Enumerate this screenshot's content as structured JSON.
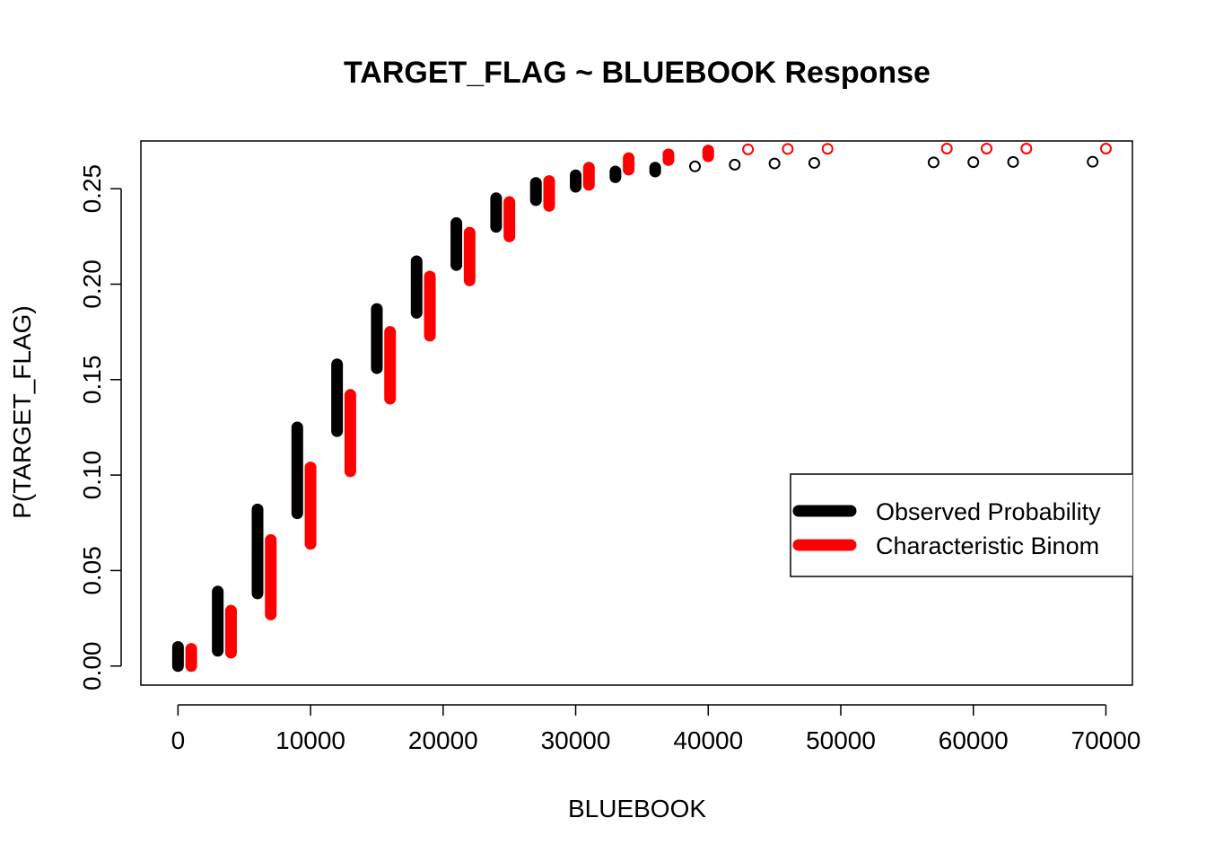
{
  "chart_data": {
    "type": "scatter",
    "title": "TARGET_FLAG ~ BLUEBOOK Response",
    "xlabel": "BLUEBOOK",
    "ylabel": "P(TARGET_FLAG)",
    "xlim": [
      -2800,
      72000
    ],
    "ylim": [
      -0.01,
      0.275
    ],
    "x_ticks": [
      0,
      10000,
      20000,
      30000,
      40000,
      50000,
      60000,
      70000
    ],
    "x_tick_labels": [
      "0",
      "10000",
      "20000",
      "30000",
      "40000",
      "50000",
      "60000",
      "70000"
    ],
    "y_ticks": [
      0.0,
      0.05,
      0.1,
      0.15,
      0.2,
      0.25
    ],
    "y_tick_labels": [
      "0.00",
      "0.05",
      "0.10",
      "0.15",
      "0.20",
      "0.25"
    ],
    "grid": false,
    "legend": {
      "position": "right",
      "clipped_at_plot_edge": true
    },
    "series": [
      {
        "name": "Observed Probability",
        "color": "#000000",
        "ranges": [
          {
            "x": 0,
            "ymin": 0.0,
            "ymax": 0.01
          },
          {
            "x": 3000,
            "ymin": 0.008,
            "ymax": 0.039
          },
          {
            "x": 6000,
            "ymin": 0.038,
            "ymax": 0.082
          },
          {
            "x": 9000,
            "ymin": 0.08,
            "ymax": 0.125
          },
          {
            "x": 12000,
            "ymin": 0.123,
            "ymax": 0.158
          },
          {
            "x": 15000,
            "ymin": 0.156,
            "ymax": 0.187
          },
          {
            "x": 18000,
            "ymin": 0.185,
            "ymax": 0.212
          },
          {
            "x": 21000,
            "ymin": 0.21,
            "ymax": 0.232
          },
          {
            "x": 24000,
            "ymin": 0.23,
            "ymax": 0.245
          },
          {
            "x": 27000,
            "ymin": 0.244,
            "ymax": 0.253
          },
          {
            "x": 30000,
            "ymin": 0.251,
            "ymax": 0.257
          },
          {
            "x": 33000,
            "ymin": 0.256,
            "ymax": 0.259
          },
          {
            "x": 36000,
            "ymin": 0.259,
            "ymax": 0.261
          }
        ],
        "points": [
          {
            "x": 39000,
            "y": 0.2617
          },
          {
            "x": 42000,
            "y": 0.2626
          },
          {
            "x": 45000,
            "y": 0.2632
          },
          {
            "x": 48000,
            "y": 0.2635
          },
          {
            "x": 57000,
            "y": 0.2638
          },
          {
            "x": 60000,
            "y": 0.2639
          },
          {
            "x": 63000,
            "y": 0.264
          },
          {
            "x": 69000,
            "y": 0.2641
          }
        ]
      },
      {
        "name": "Characteristic Binom",
        "color": "#ff0000",
        "ranges": [
          {
            "x": 1000,
            "ymin": 0.0,
            "ymax": 0.009
          },
          {
            "x": 4000,
            "ymin": 0.007,
            "ymax": 0.029
          },
          {
            "x": 7000,
            "ymin": 0.027,
            "ymax": 0.066
          },
          {
            "x": 10000,
            "ymin": 0.064,
            "ymax": 0.104
          },
          {
            "x": 13000,
            "ymin": 0.102,
            "ymax": 0.142
          },
          {
            "x": 16000,
            "ymin": 0.14,
            "ymax": 0.175
          },
          {
            "x": 19000,
            "ymin": 0.173,
            "ymax": 0.204
          },
          {
            "x": 22000,
            "ymin": 0.202,
            "ymax": 0.227
          },
          {
            "x": 25000,
            "ymin": 0.225,
            "ymax": 0.243
          },
          {
            "x": 28000,
            "ymin": 0.241,
            "ymax": 0.254
          },
          {
            "x": 31000,
            "ymin": 0.252,
            "ymax": 0.261
          },
          {
            "x": 34000,
            "ymin": 0.26,
            "ymax": 0.266
          },
          {
            "x": 37000,
            "ymin": 0.265,
            "ymax": 0.268
          },
          {
            "x": 40000,
            "ymin": 0.267,
            "ymax": 0.27
          }
        ],
        "points": [
          {
            "x": 43000,
            "y": 0.2706
          },
          {
            "x": 46000,
            "y": 0.2708
          },
          {
            "x": 49000,
            "y": 0.2709
          },
          {
            "x": 58000,
            "y": 0.271
          },
          {
            "x": 61000,
            "y": 0.271
          },
          {
            "x": 64000,
            "y": 0.271
          },
          {
            "x": 70000,
            "y": 0.271
          }
        ]
      }
    ]
  }
}
